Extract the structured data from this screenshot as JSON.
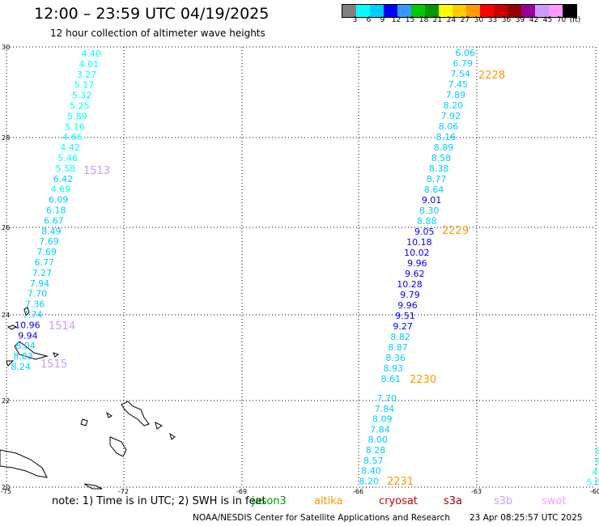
{
  "title": "12:00 – 23:59 UTC 04/19/2025",
  "subtitle": "12 hour collection of altimeter wave heights",
  "legend": {
    "swatches": [
      "#808080",
      "#00ffff",
      "#00ccff",
      "#0000ff",
      "#3399ff",
      "#00cc00",
      "#009900",
      "#ffff00",
      "#ffcc00",
      "#ff9900",
      "#ff0000",
      "#cc0000",
      "#990000",
      "#990099",
      "#cc99ff",
      "#ff99ff",
      "#000000"
    ],
    "labels": [
      "3",
      "6",
      "9",
      "12",
      "15",
      "18",
      "21",
      "24",
      "27",
      "30",
      "33",
      "36",
      "39",
      "42",
      "45",
      "70",
      "(ft)"
    ]
  },
  "axes": {
    "lat_labels": [
      "30",
      "28",
      "26",
      "24",
      "22",
      "20"
    ],
    "lon_labels": [
      "-75",
      "-72",
      "-69",
      "-66",
      "-63",
      "-60"
    ]
  },
  "tracks": [
    {
      "values": [
        "4.40",
        "4.01",
        "3.27",
        "5.17",
        "5.32",
        "5.25",
        "5.89",
        "5.16",
        "4.66",
        "4.42",
        "5.46",
        "5.58",
        "6.42",
        "4.69",
        "6.09",
        "6.18",
        "6.67",
        "8.49",
        "7.69",
        "7.69",
        "6.77",
        "7.27",
        "7.94",
        "7.70",
        "7.36",
        "7.74",
        "10.96",
        "9.94",
        "8.04",
        "8.83",
        "8.24"
      ],
      "colors": [
        "#00ffff",
        "#00ffff",
        "#00ffff",
        "#00ffff",
        "#00ffff",
        "#00ffff",
        "#00ffff",
        "#00ffff",
        "#00ffff",
        "#00ffff",
        "#00ffff",
        "#00ffff",
        "#00ccff",
        "#00ffff",
        "#00ccff",
        "#00ccff",
        "#00ccff",
        "#00ccff",
        "#00ccff",
        "#00ccff",
        "#00ccff",
        "#00ccff",
        "#00ccff",
        "#00ccff",
        "#00ccff",
        "#00ccff",
        "#0000ff",
        "#0000ff",
        "#00ccff",
        "#00ccff",
        "#00ccff"
      ]
    },
    {
      "values": [
        "6.06",
        "6.79",
        "7.54",
        "7.45",
        "7.89",
        "8.20",
        "7.92",
        "8.06",
        "8.16",
        "8.89",
        "8.58",
        "8.38",
        "8.77",
        "8.64",
        "9.01",
        "8.30",
        "8.88",
        "9.05",
        "10.18",
        "10.02",
        "9.96",
        "9.62",
        "10.28",
        "9.79",
        "9.96",
        "9.51",
        "9.27",
        "8.82",
        "8.87",
        "8.36",
        "8.93",
        "8.61"
      ],
      "colors": [
        "#00ccff",
        "#00ccff",
        "#00ccff",
        "#00ccff",
        "#00ccff",
        "#00ccff",
        "#00ccff",
        "#00ccff",
        "#00ccff",
        "#00ccff",
        "#00ccff",
        "#00ccff",
        "#00ccff",
        "#00ccff",
        "#0000ff",
        "#00ccff",
        "#00ccff",
        "#0000ff",
        "#0000ff",
        "#0000ff",
        "#0000ff",
        "#0000ff",
        "#0000ff",
        "#0000ff",
        "#0000ff",
        "#0000ff",
        "#0000ff",
        "#00ccff",
        "#00ccff",
        "#00ccff",
        "#00ccff",
        "#00ccff"
      ]
    },
    {
      "values": [
        "7.70",
        "7.84",
        "8.09",
        "7.84",
        "8.00",
        "8.28",
        "8.57",
        "8.40",
        "8.20"
      ],
      "colors": [
        "#00ccff",
        "#00ccff",
        "#00ccff",
        "#00ccff",
        "#00ccff",
        "#00ccff",
        "#00ccff",
        "#00ccff",
        "#00ccff"
      ]
    },
    {
      "values": [
        "5",
        "5",
        "4.",
        "5.6"
      ],
      "colors": [
        "#00ffff",
        "#00ffff",
        "#00ffff",
        "#00ffff"
      ]
    }
  ],
  "time_labels": [
    {
      "text": "1513",
      "color": "#cc99ff"
    },
    {
      "text": "1514",
      "color": "#cc99ff"
    },
    {
      "text": "1515",
      "color": "#cc99ff"
    },
    {
      "text": "2228",
      "color": "#ff9900"
    },
    {
      "text": "2229",
      "color": "#ff9900"
    },
    {
      "text": "2230",
      "color": "#ff9900"
    },
    {
      "text": "2231",
      "color": "#ff9900"
    }
  ],
  "footer": {
    "note": "note: 1) Time is in UTC; 2) SWH is in feet",
    "satellites": [
      {
        "name": "jason3",
        "color": "#009900"
      },
      {
        "name": "altika",
        "color": "#ff9900"
      },
      {
        "name": "cryosat",
        "color": "#cc0000"
      },
      {
        "name": "s3a",
        "color": "#990000"
      },
      {
        "name": "s3b",
        "color": "#cc99ff"
      },
      {
        "name": "swot",
        "color": "#ff99ff"
      }
    ],
    "credit": "NOAA/NESDIS Center for Satellite Applications and Research",
    "timestamp": "23 Apr 08:25:57 UTC 2025"
  }
}
